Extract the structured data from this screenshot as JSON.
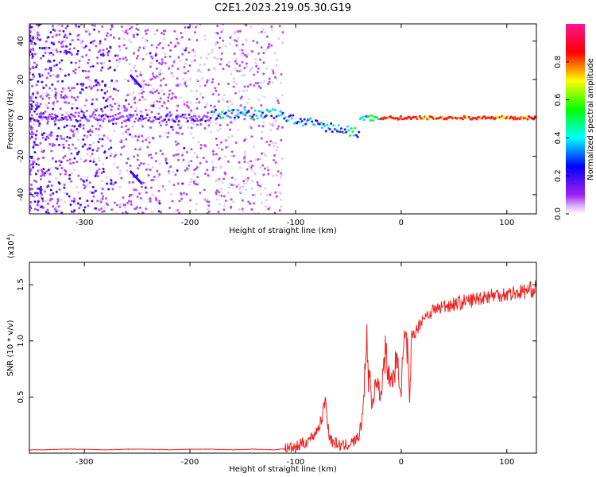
{
  "figure": {
    "title": "C2E1.2023.219.05.30.G19"
  },
  "chart_data": [
    {
      "type": "heatmap",
      "title": "C2E1.2023.219.05.30.G19",
      "xlabel": "Height of straight line (km)",
      "ylabel": "Frequency (Hz)",
      "xlim": [
        -352,
        128
      ],
      "ylim": [
        -50,
        49
      ],
      "x_ticks": [
        -300,
        -200,
        -100,
        0,
        100
      ],
      "y_ticks": [
        -40,
        -20,
        0,
        20,
        40
      ],
      "x_tick_labels": [
        "-300",
        "-200",
        "-100",
        "0",
        "100"
      ],
      "y_tick_labels": [
        "-40",
        "-20",
        "0",
        "20",
        "40"
      ],
      "grid": false,
      "colorbar": {
        "label": "Normalized spectral amplitude",
        "range": [
          0,
          1
        ],
        "ticks": [
          0.0,
          0.2,
          0.4,
          0.6,
          0.8
        ],
        "tick_labels": [
          "0.0",
          "0.2",
          "0.4",
          "0.6",
          "0.8"
        ],
        "colormap": [
          "#ffffff",
          "#a020f0",
          "#0000ff",
          "#00ffff",
          "#00ff00",
          "#ffff00",
          "#ff0000",
          "#ff1493"
        ]
      },
      "features": [
        {
          "description_x_range": [
            -352,
            -120
          ],
          "frequency_range": [
            -50,
            49
          ],
          "amplitude": "0.05-0.3 scattered noise"
        },
        {
          "description_x_range": [
            -180,
            -40
          ],
          "frequency_center": "0 to -10",
          "amplitude": "0.3-0.6 line"
        },
        {
          "description_x_range": [
            -20,
            128
          ],
          "frequency_center": 0,
          "amplitude": "0.8-1.0 line"
        },
        {
          "description_x_range": [
            -255,
            -245
          ],
          "frequency_range": [
            16,
            22
          ],
          "amplitude": "0.2-0.3"
        },
        {
          "description_x_range": [
            -255,
            -245
          ],
          "frequency_range": [
            -34,
            -28
          ],
          "amplitude": "0.2-0.3"
        }
      ]
    },
    {
      "type": "line",
      "xlabel": "Height of straight line (km)",
      "ylabel": "SNR (10 * v/v)",
      "y_multiplier_label": "(x10",
      "y_multiplier_exp": "4",
      "y_multiplier_close": ")",
      "xlim": [
        -352,
        128
      ],
      "ylim": [
        0,
        1.7
      ],
      "x_ticks": [
        -300,
        -200,
        -100,
        0,
        100
      ],
      "y_ticks": [
        0.5,
        1.0,
        1.5
      ],
      "x_tick_labels": [
        "-300",
        "-200",
        "-100",
        "0",
        "100"
      ],
      "y_tick_labels": [
        "0.5",
        "1.0",
        "1.5"
      ],
      "grid": false,
      "series": [
        {
          "color": "#ee2020",
          "x": [
            -352,
            -340,
            -320,
            -300,
            -280,
            -260,
            -240,
            -220,
            -200,
            -180,
            -160,
            -140,
            -120,
            -110,
            -100,
            -95,
            -90,
            -85,
            -80,
            -75,
            -72,
            -70,
            -68,
            -65,
            -60,
            -55,
            -50,
            -45,
            -40,
            -37,
            -35,
            -33,
            -31,
            -30,
            -28,
            -26,
            -24,
            -20,
            -15,
            -10,
            -5,
            -2,
            0,
            3,
            6,
            8,
            10,
            15,
            20,
            30,
            40,
            50,
            60,
            70,
            80,
            90,
            100,
            110,
            120,
            128
          ],
          "y": [
            0.03,
            0.03,
            0.035,
            0.035,
            0.03,
            0.035,
            0.035,
            0.03,
            0.035,
            0.035,
            0.03,
            0.035,
            0.03,
            0.04,
            0.05,
            0.08,
            0.1,
            0.14,
            0.2,
            0.3,
            0.5,
            0.3,
            0.15,
            0.1,
            0.08,
            0.06,
            0.08,
            0.1,
            0.15,
            0.3,
            0.6,
            1.1,
            0.6,
            0.8,
            0.4,
            0.5,
            0.7,
            0.5,
            0.9,
            0.6,
            0.8,
            0.7,
            0.6,
            1.0,
            0.9,
            0.4,
            1.05,
            1.1,
            1.2,
            1.27,
            1.31,
            1.33,
            1.35,
            1.37,
            1.4,
            1.41,
            1.42,
            1.43,
            1.45,
            1.47
          ]
        }
      ]
    }
  ]
}
